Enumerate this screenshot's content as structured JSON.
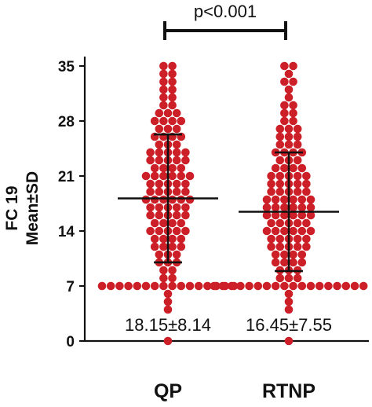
{
  "chart_data": {
    "type": "scatter",
    "categories": [
      "QP",
      "RTNP"
    ],
    "ylabel_line1": "FC 19",
    "ylabel_line2": "Mean±SD",
    "yticks": [
      0,
      7,
      14,
      21,
      28,
      35
    ],
    "ylim": [
      0,
      35
    ],
    "grid": false,
    "series": [
      {
        "category": "QP",
        "mean": 18.15,
        "sd": 8.14,
        "stat_label": "18.15±8.14",
        "values": [
          35,
          35,
          34,
          34,
          33,
          33,
          32,
          32,
          31,
          31,
          30,
          30,
          29,
          29,
          29,
          28,
          28,
          28,
          28,
          27,
          27,
          27,
          26,
          26,
          26,
          26,
          25,
          25,
          25,
          24,
          24,
          24,
          24,
          24,
          23,
          23,
          23,
          23,
          23,
          22,
          22,
          22,
          22,
          21,
          21,
          21,
          21,
          21,
          21,
          20,
          20,
          20,
          20,
          20,
          19,
          19,
          19,
          19,
          19,
          18,
          18,
          18,
          18,
          18,
          18,
          17,
          17,
          17,
          17,
          17,
          16,
          16,
          16,
          16,
          16,
          15,
          15,
          15,
          15,
          14,
          14,
          14,
          14,
          14,
          13,
          13,
          13,
          13,
          12,
          12,
          12,
          12,
          11,
          11,
          11,
          10,
          10,
          10,
          9,
          9,
          8,
          8,
          7,
          7,
          7,
          7,
          7,
          7,
          7,
          7,
          7,
          7,
          7,
          7,
          7,
          7,
          7,
          7,
          6,
          5,
          4,
          0
        ]
      },
      {
        "category": "RTNP",
        "mean": 16.45,
        "sd": 7.55,
        "stat_label": "16.45±7.55",
        "values": [
          35,
          35,
          34,
          33,
          33,
          32,
          31,
          30,
          30,
          29,
          29,
          28,
          28,
          27,
          27,
          27,
          26,
          26,
          26,
          25,
          25,
          25,
          24,
          24,
          24,
          24,
          23,
          23,
          23,
          22,
          22,
          22,
          22,
          21,
          21,
          21,
          21,
          21,
          20,
          20,
          20,
          20,
          20,
          19,
          19,
          19,
          19,
          19,
          18,
          18,
          18,
          18,
          18,
          18,
          17,
          17,
          17,
          17,
          17,
          17,
          16,
          16,
          16,
          16,
          16,
          16,
          15,
          15,
          15,
          15,
          15,
          14,
          14,
          14,
          14,
          14,
          14,
          13,
          13,
          13,
          13,
          13,
          12,
          12,
          12,
          12,
          12,
          11,
          11,
          11,
          11,
          10,
          10,
          10,
          10,
          9,
          9,
          9,
          8,
          8,
          8,
          7,
          7,
          7,
          7,
          7,
          7,
          7,
          7,
          7,
          7,
          7,
          7,
          7,
          7,
          7,
          7,
          7,
          7,
          6,
          5,
          4,
          0
        ]
      }
    ],
    "significance": {
      "label": "p<0.001",
      "between": [
        "QP",
        "RTNP"
      ]
    },
    "colors": {
      "points": "#cc1f27",
      "lines": "#111111"
    }
  }
}
